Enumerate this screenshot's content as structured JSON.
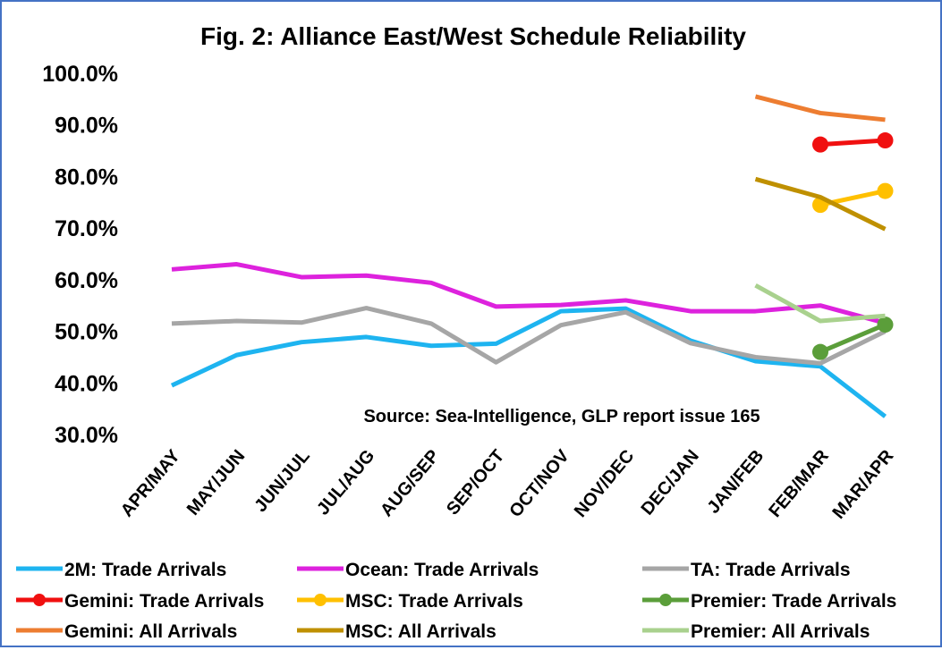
{
  "chart_data": {
    "type": "line",
    "title": "Fig. 2: Alliance East/West Schedule Reliability",
    "annotation": "Source: Sea-Intelligence, GLP report issue 165",
    "xlabel": "",
    "ylabel": "",
    "ylim": [
      30,
      100
    ],
    "yticks": [
      "30.0%",
      "40.0%",
      "50.0%",
      "60.0%",
      "70.0%",
      "80.0%",
      "90.0%",
      "100.0%"
    ],
    "grid": false,
    "legend_position": "bottom",
    "categories": [
      "APR/MAY",
      "MAY/JUN",
      "JUN/JUL",
      "JUL/AUG",
      "AUG/SEP",
      "SEP/OCT",
      "OCT/NOV",
      "NOV/DEC",
      "DEC/JAN",
      "JAN/FEB",
      "FEB/MAR",
      "MAR/APR"
    ],
    "series": [
      {
        "name": "2M: Trade Arrivals",
        "color": "#1EB4F0",
        "marker": false,
        "values": [
          39.5,
          45.4,
          47.9,
          48.9,
          47.2,
          47.6,
          53.9,
          54.4,
          48.2,
          44.2,
          43.2,
          33.5
        ]
      },
      {
        "name": "Ocean: Trade Arrivals",
        "color": "#DD22DD",
        "marker": false,
        "values": [
          62.0,
          63.0,
          60.5,
          60.8,
          59.4,
          54.8,
          55.1,
          56.0,
          53.9,
          53.9,
          55.0,
          51.6
        ]
      },
      {
        "name": "TA: Trade Arrivals",
        "color": "#A6A6A6",
        "marker": false,
        "values": [
          51.5,
          52.0,
          51.7,
          54.5,
          51.5,
          44.0,
          51.2,
          53.7,
          47.7,
          45.0,
          43.8,
          50.0
        ]
      },
      {
        "name": "Gemini: Trade Arrivals",
        "color": "#F01010",
        "marker": true,
        "values": [
          null,
          null,
          null,
          null,
          null,
          null,
          null,
          null,
          null,
          null,
          86.2,
          87.0
        ]
      },
      {
        "name": "MSC: Trade Arrivals",
        "color": "#FFC000",
        "marker": true,
        "values": [
          null,
          null,
          null,
          null,
          null,
          null,
          null,
          null,
          null,
          null,
          74.5,
          77.2
        ]
      },
      {
        "name": "Premier: Trade Arrivals",
        "color": "#5B9E3A",
        "marker": true,
        "values": [
          null,
          null,
          null,
          null,
          null,
          null,
          null,
          null,
          null,
          null,
          46.0,
          51.3
        ]
      },
      {
        "name": "Gemini: All Arrivals",
        "color": "#ED7D31",
        "marker": false,
        "values": [
          null,
          null,
          null,
          null,
          null,
          null,
          null,
          null,
          null,
          95.5,
          92.3,
          91.0
        ]
      },
      {
        "name": "MSC: All Arrivals",
        "color": "#BF9000",
        "marker": false,
        "values": [
          null,
          null,
          null,
          null,
          null,
          null,
          null,
          null,
          null,
          79.5,
          76.0,
          69.8
        ]
      },
      {
        "name": "Premier: All Arrivals",
        "color": "#A9D18E",
        "marker": false,
        "values": [
          null,
          null,
          null,
          null,
          null,
          null,
          null,
          null,
          null,
          58.9,
          52.0,
          53.0
        ]
      }
    ]
  }
}
